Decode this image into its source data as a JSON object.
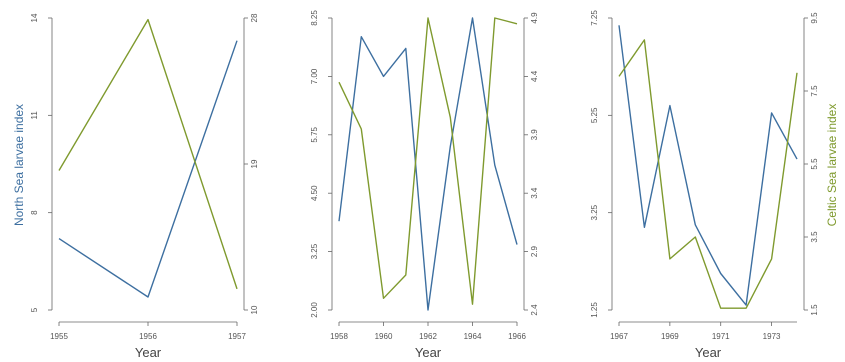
{
  "figure": {
    "left_axis_label": "North Sea larvae index",
    "right_axis_label": "Celtic Sea larvae index",
    "colors": {
      "north_sea": "#3d6fa0",
      "celtic_sea": "#7f9a2e",
      "axis": "#666666"
    }
  },
  "chart_data": [
    {
      "type": "line",
      "xlabel": "Year",
      "x": [
        1955,
        1956,
        1957
      ],
      "xticks": [
        "1955",
        "1956",
        "1957"
      ],
      "xlim": [
        1955,
        1957
      ],
      "ylim_left": [
        5,
        14
      ],
      "yticks_left": [
        "5",
        "8",
        "11",
        "14"
      ],
      "ylim_right": [
        10,
        28
      ],
      "yticks_right": [
        "10",
        "19",
        "28"
      ],
      "series": [
        {
          "axis": "left",
          "color": "#3d6fa0",
          "values": [
            7.2,
            5.4,
            13.3
          ]
        },
        {
          "axis": "right",
          "color": "#7f9a2e",
          "values": [
            18.6,
            27.9,
            11.3
          ]
        }
      ]
    },
    {
      "type": "line",
      "xlabel": "Year",
      "x": [
        1958,
        1959,
        1960,
        1961,
        1962,
        1963,
        1964,
        1965,
        1966
      ],
      "xticks": [
        "1958",
        "1960",
        "1962",
        "1964",
        "1966"
      ],
      "xlim": [
        1958,
        1966
      ],
      "ylim_left": [
        2.0,
        8.25
      ],
      "yticks_left": [
        "2.00",
        "3.25",
        "4.50",
        "5.75",
        "7.00",
        "8.25"
      ],
      "ylim_right": [
        2.4,
        4.9
      ],
      "yticks_right": [
        "2.4",
        "2.9",
        "3.4",
        "3.9",
        "4.4",
        "4.9"
      ],
      "series": [
        {
          "axis": "left",
          "color": "#3d6fa0",
          "values": [
            3.9,
            7.85,
            7.0,
            7.6,
            2.0,
            5.5,
            8.25,
            5.1,
            3.4
          ]
        },
        {
          "axis": "right",
          "color": "#7f9a2e",
          "values": [
            4.35,
            3.95,
            2.5,
            2.7,
            4.9,
            4.05,
            2.45,
            4.9,
            4.85
          ]
        }
      ]
    },
    {
      "type": "line",
      "xlabel": "Year",
      "x": [
        1967,
        1968,
        1969,
        1970,
        1971,
        1972,
        1973,
        1974
      ],
      "xticks": [
        "1967",
        "1969",
        "1971",
        "1973"
      ],
      "xlim": [
        1967,
        1974
      ],
      "ylim_left": [
        1.25,
        7.25
      ],
      "yticks_left": [
        "1.25",
        "3.25",
        "5.25",
        "7.25"
      ],
      "ylim_right": [
        1.5,
        9.5
      ],
      "yticks_right": [
        "1.5",
        "3.5",
        "5.5",
        "7.5",
        "9.5"
      ],
      "series": [
        {
          "axis": "left",
          "color": "#3d6fa0",
          "values": [
            7.1,
            2.95,
            5.45,
            3.0,
            2.0,
            1.35,
            5.3,
            4.35
          ]
        },
        {
          "axis": "right",
          "color": "#7f9a2e",
          "values": [
            7.9,
            8.9,
            2.9,
            3.5,
            1.55,
            1.55,
            2.9,
            8.0
          ]
        }
      ]
    }
  ]
}
